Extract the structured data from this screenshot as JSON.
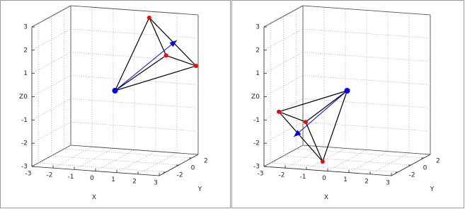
{
  "chart_data": [
    {
      "type": "scatter3d",
      "xlabel": "X",
      "ylabel": "Y",
      "zlabel": "Z",
      "xlim": [
        -3,
        3
      ],
      "ylim": [
        -3,
        3
      ],
      "zlim": [
        -3,
        3
      ],
      "xticks": [
        -3,
        -2,
        -1,
        0,
        1,
        2,
        3
      ],
      "yticks": [
        -2,
        0,
        2
      ],
      "zticks": [
        -3,
        -2,
        -1,
        0,
        1,
        2,
        3
      ],
      "grid": true,
      "center": {
        "x": 0,
        "y": 0,
        "z": 0,
        "color": "#0000ff"
      },
      "vertices": {
        "x": [
          1,
          2.1,
          2.9
        ],
        "y": [
          2,
          1,
          3
        ],
        "z": [
          2.9,
          1.5,
          0.8
        ],
        "color": "#ff0000"
      },
      "arrow_tip": {
        "x": 2.45,
        "y": 1.5,
        "z": 2.1,
        "color": "#0000ff"
      }
    },
    {
      "type": "scatter3d",
      "xlabel": "X",
      "ylabel": "Y",
      "zlabel": "Z",
      "xlim": [
        -3,
        3
      ],
      "ylim": [
        -3,
        3
      ],
      "zlim": [
        -3,
        3
      ],
      "xticks": [
        -3,
        -2,
        -1,
        0,
        1,
        2,
        3
      ],
      "yticks": [
        -2,
        0,
        2
      ],
      "zticks": [
        -3,
        -2,
        -1,
        0,
        1,
        2,
        3
      ],
      "grid": true,
      "center": {
        "x": 0,
        "y": 0,
        "z": 0,
        "color": "#0000ff"
      },
      "vertices": {
        "x": [
          -2.3,
          -1.65,
          -0.85
        ],
        "y": [
          -3,
          -1,
          -1
        ],
        "z": [
          -0.6,
          -1.3,
          -2.95
        ],
        "color": "#ff0000"
      },
      "arrow_tip": {
        "x": -1.9,
        "y": -2,
        "z": -1.8,
        "color": "#0000ff"
      }
    }
  ]
}
